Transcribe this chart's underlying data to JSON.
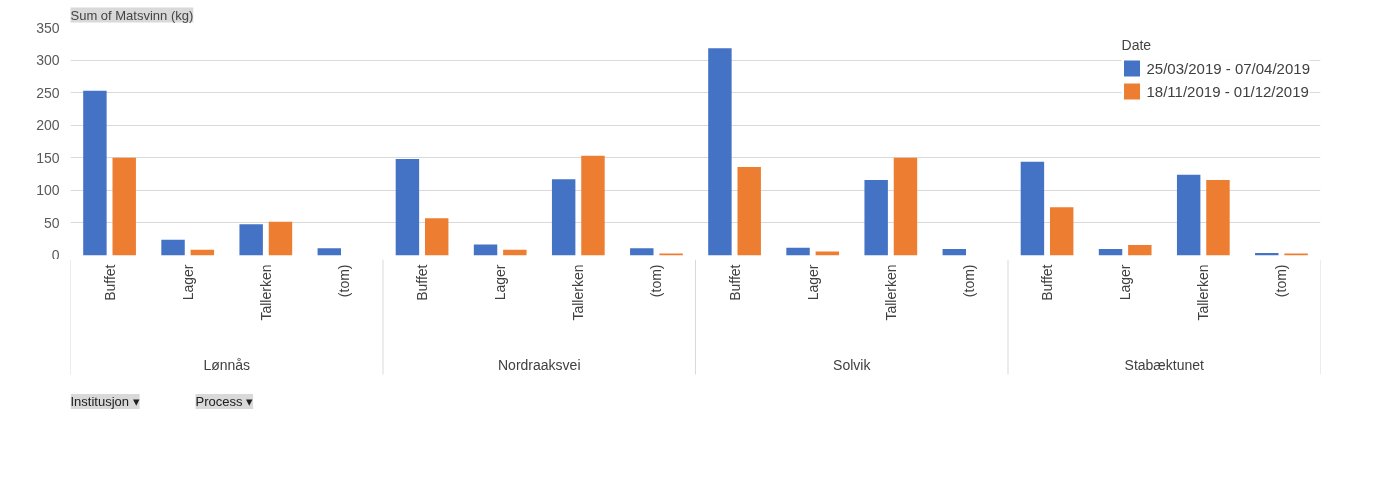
{
  "chart_data": {
    "type": "bar",
    "title": "Sum of Matsvinn (kg)",
    "legend_title": "Date",
    "categories": [
      "Buffet",
      "Lager",
      "Tallerken",
      "(tom)",
      "Buffet",
      "Lager",
      "Tallerken",
      "(tom)",
      "Buffet",
      "Lager",
      "Tallerken",
      "(tom)",
      "Buffet",
      "Lager",
      "Tallerken",
      "(tom)"
    ],
    "series": [
      {
        "name": "25/03/2019 - 07/04/2019",
        "color": "#4472c4",
        "values": [
          253,
          24,
          48,
          11,
          148,
          17,
          117,
          11,
          318,
          12,
          116,
          10,
          144,
          10,
          124,
          4
        ]
      },
      {
        "name": "18/11/2019 - 01/12/2019",
        "color": "#ed7d31",
        "values": [
          150,
          9,
          52,
          null,
          57,
          9,
          153,
          3,
          136,
          6,
          150,
          null,
          74,
          16,
          116,
          3
        ]
      }
    ],
    "annotations": [
      "Lønnås",
      "Nordraaksvei",
      "Solvik",
      "Stabæktunet",
      "Institusjon ▾",
      "Process ▾"
    ],
    "ylim": [
      0,
      350
    ],
    "yticks": [
      0,
      50,
      100,
      150,
      200,
      250,
      300,
      350
    ],
    "grid": "y",
    "legend": "top right"
  }
}
